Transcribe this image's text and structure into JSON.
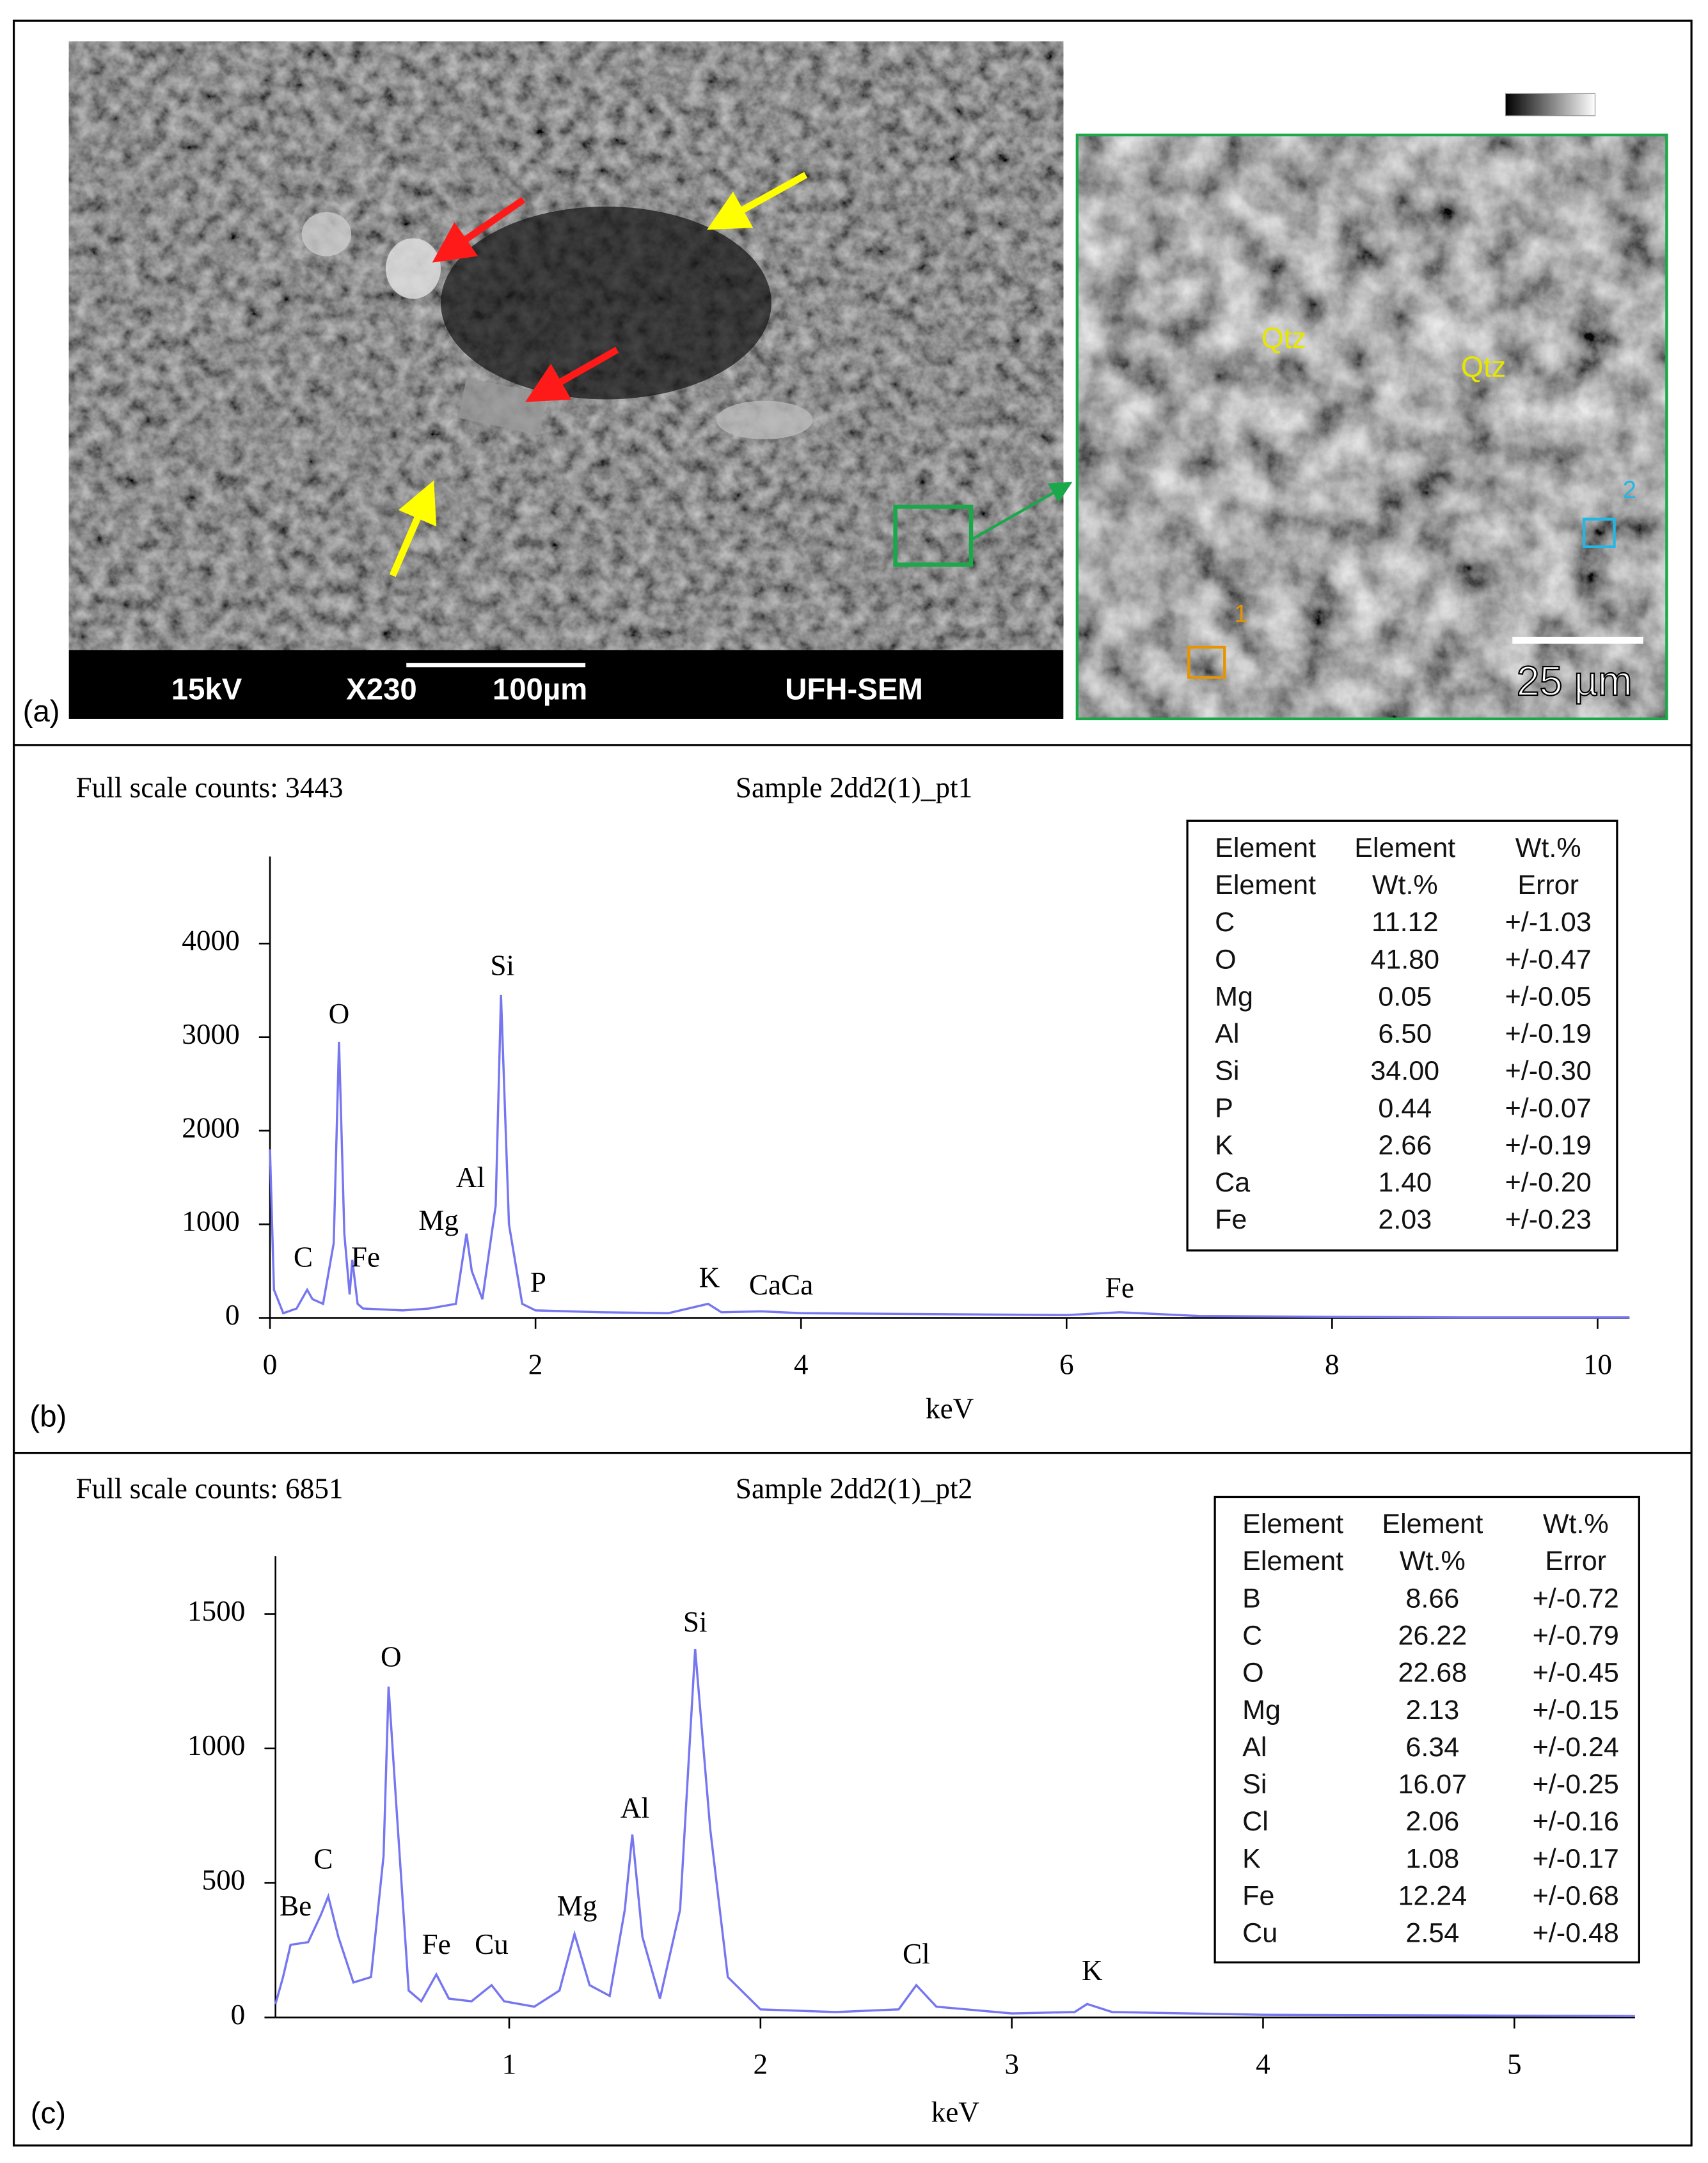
{
  "panel_a": {
    "label": "(a)",
    "scale_bar": [
      "15kV",
      "X230",
      "100µm",
      "UFH-SEM"
    ],
    "inset": {
      "minerals": [
        "Qtz",
        "Qtz"
      ],
      "points": [
        "1",
        "2"
      ],
      "scale": "25 µm"
    }
  },
  "chart_data": [
    {
      "type": "line",
      "panel_label": "(b)",
      "subtitle": "Full scale counts: 3443",
      "title": "Sample 2dd2(1)_pt1",
      "x_label": "keV",
      "color": "#7676f0",
      "x": [
        0,
        0.03,
        0.1,
        0.2,
        0.28,
        0.32,
        0.4,
        0.48,
        0.52,
        0.56,
        0.6,
        0.62,
        0.66,
        0.7,
        1.0,
        1.2,
        1.4,
        1.48,
        1.52,
        1.6,
        1.7,
        1.74,
        1.8,
        1.9,
        2.0,
        2.5,
        3.0,
        3.3,
        3.4,
        3.7,
        4.0,
        5.0,
        6.0,
        6.4,
        7.0,
        8.0,
        9.0,
        10.24
      ],
      "values": [
        1800,
        300,
        50,
        100,
        300,
        200,
        150,
        800,
        2950,
        900,
        250,
        620,
        150,
        100,
        80,
        100,
        150,
        900,
        500,
        200,
        1200,
        3450,
        1000,
        150,
        80,
        60,
        50,
        150,
        60,
        70,
        50,
        40,
        30,
        60,
        20,
        10,
        5,
        5
      ],
      "xlim": [
        0,
        10.24
      ],
      "ylim": [
        0,
        4930
      ],
      "xticks": [
        0,
        2,
        4,
        6,
        8,
        10
      ],
      "yticks": [
        0,
        1000,
        2000,
        3000,
        4000
      ],
      "annotations": [
        {
          "text": "C",
          "x": 0.25,
          "y": 620
        },
        {
          "text": "O",
          "x": 0.52,
          "y": 3220
        },
        {
          "text": "Fe",
          "x": 0.72,
          "y": 620
        },
        {
          "text": "Mg",
          "x": 1.27,
          "y": 1010
        },
        {
          "text": "Al",
          "x": 1.51,
          "y": 1470
        },
        {
          "text": "Si",
          "x": 1.75,
          "y": 3735
        },
        {
          "text": "P",
          "x": 2.02,
          "y": 350
        },
        {
          "text": "K",
          "x": 3.31,
          "y": 400
        },
        {
          "text": "CaCa",
          "x": 3.85,
          "y": 320
        },
        {
          "text": "Fe",
          "x": 6.4,
          "y": 290
        }
      ],
      "table": {
        "header": [
          [
            "Element",
            "Element",
            "Wt.%"
          ],
          [
            "Element",
            "Wt.%",
            "Error"
          ]
        ],
        "rows": [
          [
            "C",
            "11.12",
            "+/-1.03"
          ],
          [
            "O",
            "41.80",
            "+/-0.47"
          ],
          [
            "Mg",
            "0.05",
            "+/-0.05"
          ],
          [
            "Al",
            "6.50",
            "+/-0.19"
          ],
          [
            "Si",
            "34.00",
            "+/-0.30"
          ],
          [
            "P",
            "0.44",
            "+/-0.07"
          ],
          [
            "K",
            "2.66",
            "+/-0.19"
          ],
          [
            "Ca",
            "1.40",
            "+/-0.20"
          ],
          [
            "Fe",
            "2.03",
            "+/-0.23"
          ]
        ]
      }
    },
    {
      "type": "line",
      "panel_label": "(c)",
      "subtitle": "Full scale counts: 6851",
      "title": "Sample 2dd2(1)_pt2",
      "x_label": "keV",
      "color": "#7676f0",
      "x": [
        0.07,
        0.1,
        0.13,
        0.2,
        0.25,
        0.28,
        0.32,
        0.38,
        0.45,
        0.5,
        0.52,
        0.55,
        0.6,
        0.65,
        0.71,
        0.76,
        0.85,
        0.93,
        0.98,
        1.1,
        1.2,
        1.26,
        1.32,
        1.4,
        1.46,
        1.49,
        1.53,
        1.6,
        1.68,
        1.74,
        1.8,
        1.87,
        2.0,
        2.3,
        2.55,
        2.62,
        2.7,
        3.0,
        3.25,
        3.3,
        3.4,
        4.0,
        5.48
      ],
      "values": [
        50,
        150,
        270,
        280,
        380,
        450,
        300,
        130,
        150,
        600,
        1230,
        800,
        100,
        60,
        160,
        70,
        60,
        120,
        60,
        40,
        100,
        310,
        120,
        80,
        400,
        680,
        300,
        70,
        400,
        1370,
        700,
        150,
        30,
        20,
        30,
        120,
        40,
        15,
        20,
        50,
        20,
        10,
        5
      ],
      "xlim": [
        0.07,
        5.48
      ],
      "ylim": [
        0,
        1715
      ],
      "xticks": [
        1,
        2,
        3,
        4,
        5
      ],
      "yticks": [
        0,
        500,
        1000,
        1500
      ],
      "annotations": [
        {
          "text": "Be",
          "x": 0.15,
          "y": 404
        },
        {
          "text": "C",
          "x": 0.26,
          "y": 578
        },
        {
          "text": "O",
          "x": 0.53,
          "y": 1330
        },
        {
          "text": "Fe",
          "x": 0.71,
          "y": 261
        },
        {
          "text": "Cu",
          "x": 0.93,
          "y": 261
        },
        {
          "text": "Mg",
          "x": 1.27,
          "y": 404
        },
        {
          "text": "Al",
          "x": 1.5,
          "y": 768
        },
        {
          "text": "Si",
          "x": 1.74,
          "y": 1459
        },
        {
          "text": "Cl",
          "x": 2.62,
          "y": 225
        },
        {
          "text": "K",
          "x": 3.32,
          "y": 164
        }
      ],
      "table": {
        "header": [
          [
            "Element",
            "Element",
            "Wt.%"
          ],
          [
            "Element",
            "Wt.%",
            "Error"
          ]
        ],
        "rows": [
          [
            "B",
            "8.66",
            "+/-0.72"
          ],
          [
            "C",
            "26.22",
            "+/-0.79"
          ],
          [
            "O",
            "22.68",
            "+/-0.45"
          ],
          [
            "Mg",
            "2.13",
            "+/-0.15"
          ],
          [
            "Al",
            "6.34",
            "+/-0.24"
          ],
          [
            "Si",
            "16.07",
            "+/-0.25"
          ],
          [
            "Cl",
            "2.06",
            "+/-0.16"
          ],
          [
            "K",
            "1.08",
            "+/-0.17"
          ],
          [
            "Fe",
            "12.24",
            "+/-0.68"
          ],
          [
            "Cu",
            "2.54",
            "+/-0.48"
          ]
        ]
      }
    }
  ]
}
